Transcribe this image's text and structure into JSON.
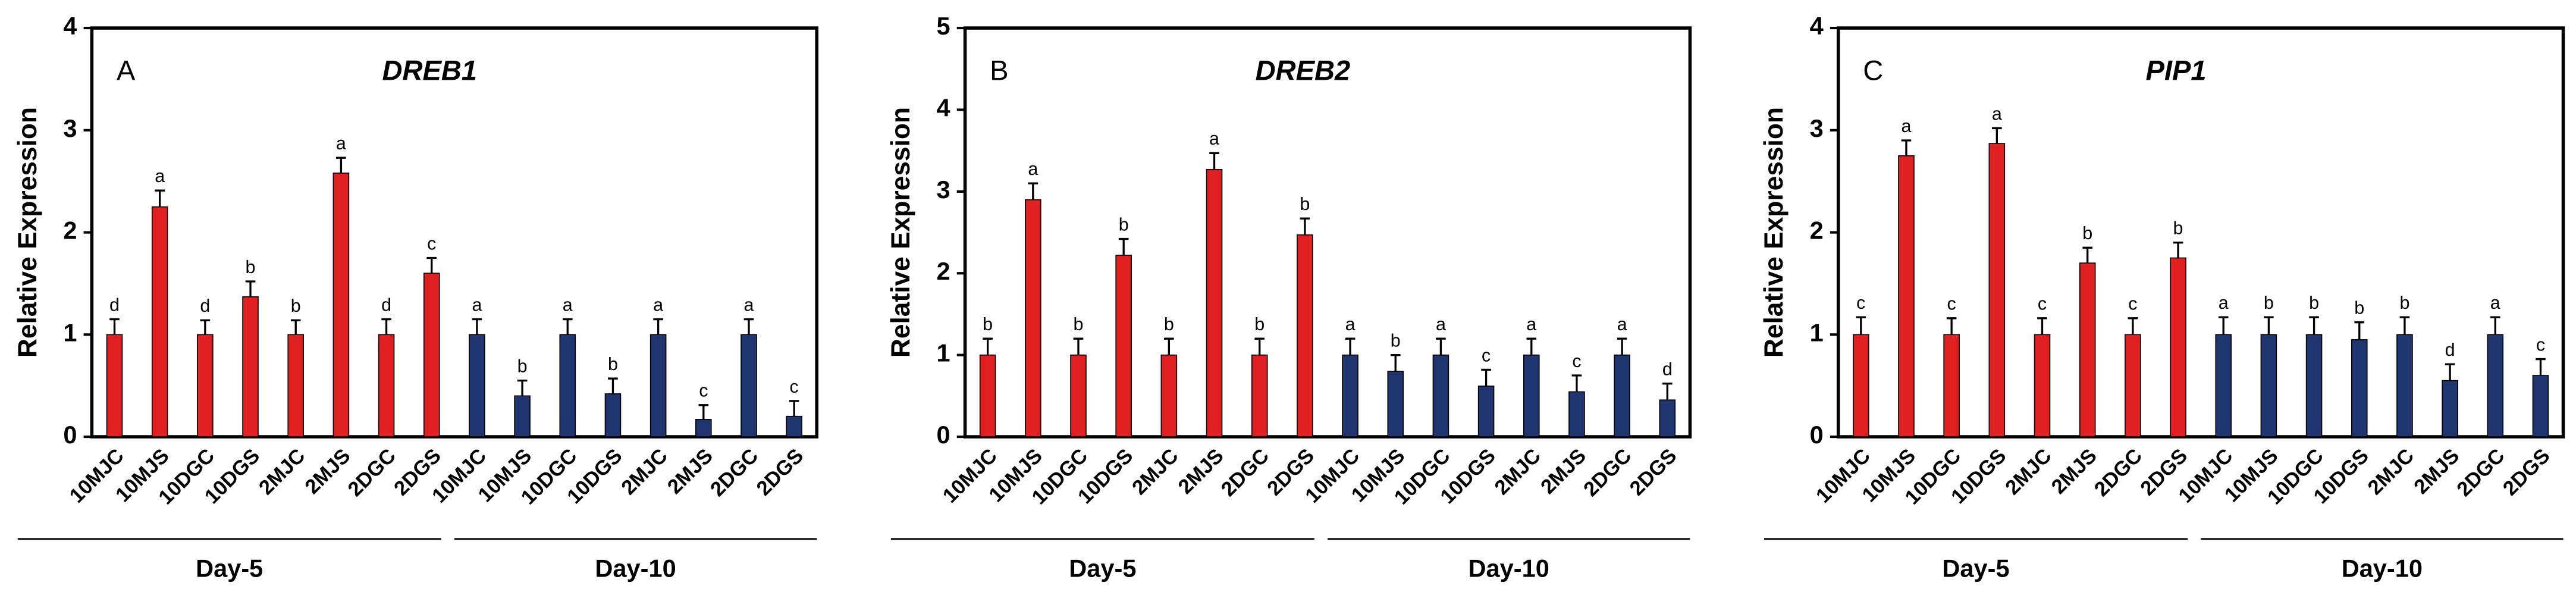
{
  "chart_data": [
    {
      "type": "bar",
      "panel_label": "A",
      "title": "DREB1",
      "ylabel": "Relative Expression",
      "ylim": [
        0,
        4
      ],
      "yticks": [
        0,
        1,
        2,
        3,
        4
      ],
      "groups": [
        {
          "name": "Day-5",
          "color": "#e02020",
          "categories": [
            "10MJC",
            "10MJS",
            "10DGC",
            "10DGS",
            "2MJC",
            "2MJS",
            "2DGC",
            "2DGS"
          ],
          "values": [
            1,
            2.25,
            1,
            1.37,
            1,
            2.58,
            1,
            1.6
          ],
          "errors": [
            0.15,
            0.16,
            0.14,
            0.15,
            0.14,
            0.15,
            0.15,
            0.15
          ],
          "letters": [
            "d",
            "a",
            "d",
            "b",
            "b",
            "a",
            "d",
            "c"
          ]
        },
        {
          "name": "Day-10",
          "color": "#1f3570",
          "categories": [
            "10MJC",
            "10MJS",
            "10DGC",
            "10DGS",
            "2MJC",
            "2MJS",
            "2DGC",
            "2DGS"
          ],
          "values": [
            1,
            0.4,
            1,
            0.42,
            1,
            0.17,
            1,
            0.2
          ],
          "errors": [
            0.15,
            0.15,
            0.15,
            0.15,
            0.15,
            0.14,
            0.15,
            0.15
          ],
          "letters": [
            "a",
            "b",
            "a",
            "b",
            "a",
            "c",
            "a",
            "c"
          ]
        }
      ]
    },
    {
      "type": "bar",
      "panel_label": "B",
      "title": "DREB2",
      "ylabel": "Relative Expression",
      "ylim": [
        0,
        5
      ],
      "yticks": [
        0,
        1,
        2,
        3,
        4,
        5
      ],
      "groups": [
        {
          "name": "Day-5",
          "color": "#e02020",
          "categories": [
            "10MJC",
            "10MJS",
            "10DGC",
            "10DGS",
            "2MJC",
            "2MJS",
            "2DGC",
            "2DGS"
          ],
          "values": [
            1,
            2.9,
            1,
            2.22,
            1,
            3.27,
            1,
            2.47
          ],
          "errors": [
            0.2,
            0.2,
            0.2,
            0.2,
            0.2,
            0.2,
            0.2,
            0.2
          ],
          "letters": [
            "b",
            "a",
            "b",
            "b",
            "b",
            "a",
            "b",
            "b"
          ]
        },
        {
          "name": "Day-10",
          "color": "#1f3570",
          "categories": [
            "10MJC",
            "10MJS",
            "10DGC",
            "10DGS",
            "2MJC",
            "2MJS",
            "2DGC",
            "2DGS"
          ],
          "values": [
            1,
            0.8,
            1,
            0.62,
            1,
            0.55,
            1,
            0.45
          ],
          "errors": [
            0.2,
            0.2,
            0.2,
            0.2,
            0.2,
            0.2,
            0.2,
            0.2
          ],
          "letters": [
            "a",
            "b",
            "a",
            "c",
            "a",
            "c",
            "a",
            "d"
          ]
        }
      ]
    },
    {
      "type": "bar",
      "panel_label": "C",
      "title": "PIP1",
      "ylabel": "Relative Expression",
      "ylim": [
        0,
        4
      ],
      "yticks": [
        0,
        1,
        2,
        3,
        4
      ],
      "groups": [
        {
          "name": "Day-5",
          "color": "#e02020",
          "categories": [
            "10MJC",
            "10MJS",
            "10DGC",
            "10DGS",
            "2MJC",
            "2MJS",
            "2DGC",
            "2DGS"
          ],
          "values": [
            1,
            2.75,
            1,
            2.87,
            1,
            1.7,
            1,
            1.75
          ],
          "errors": [
            0.17,
            0.15,
            0.16,
            0.15,
            0.16,
            0.15,
            0.16,
            0.15
          ],
          "letters": [
            "c",
            "a",
            "c",
            "a",
            "c",
            "b",
            "c",
            "b"
          ]
        },
        {
          "name": "Day-10",
          "color": "#1f3570",
          "categories": [
            "10MJC",
            "10MJS",
            "10DGC",
            "10DGS",
            "2MJC",
            "2MJS",
            "2DGC",
            "2DGS"
          ],
          "values": [
            1,
            1,
            1,
            0.95,
            1,
            0.55,
            1,
            0.6
          ],
          "errors": [
            0.17,
            0.17,
            0.17,
            0.17,
            0.17,
            0.16,
            0.17,
            0.16
          ],
          "letters": [
            "a",
            "b",
            "b",
            "b",
            "b",
            "d",
            "a",
            "c"
          ]
        }
      ]
    }
  ]
}
